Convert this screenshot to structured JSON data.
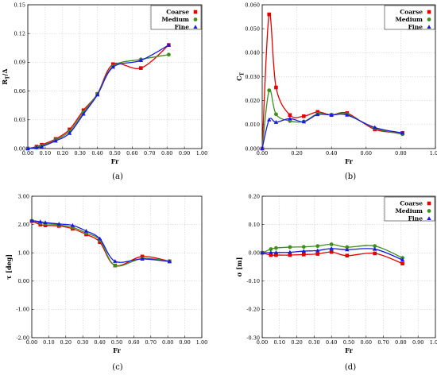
{
  "legend_labels": [
    "Coarse",
    "Medium",
    "Fine"
  ],
  "colors": {
    "Coarse": "#e60000",
    "Medium": "#3f8f1f",
    "Fine": "#1a1ae6"
  },
  "chart_data": [
    {
      "type": "line",
      "caption": "(a)",
      "xlabel": "Fr",
      "ylabel": "R_T / Δ",
      "ylabel_main": "R",
      "ylabel_sub": "T",
      "ylabel_rest": "/Δ",
      "xlim": [
        0,
        1
      ],
      "ylim": [
        0,
        0.15
      ],
      "xticks": [
        "0.00",
        "0.10",
        "0.20",
        "0.30",
        "0.40",
        "0.50",
        "0.60",
        "0.70",
        "0.80",
        "0.90",
        "1.00"
      ],
      "yticks": [
        "0.00",
        "0.03",
        "0.06",
        "0.09",
        "0.12",
        "0.15"
      ],
      "grid": true,
      "legend": "top-right",
      "series": [
        {
          "name": "Coarse",
          "marker": "square",
          "x": [
            0.0,
            0.05,
            0.08,
            0.16,
            0.24,
            0.32,
            0.4,
            0.49,
            0.65,
            0.81
          ],
          "y": [
            0.0,
            0.002,
            0.004,
            0.01,
            0.02,
            0.04,
            0.057,
            0.088,
            0.084,
            0.108
          ]
        },
        {
          "name": "Medium",
          "marker": "circle",
          "x": [
            0.0,
            0.05,
            0.08,
            0.16,
            0.24,
            0.32,
            0.4,
            0.49,
            0.65,
            0.81
          ],
          "y": [
            0.0,
            0.001,
            0.003,
            0.009,
            0.018,
            0.038,
            0.057,
            0.086,
            0.093,
            0.098
          ]
        },
        {
          "name": "Fine",
          "marker": "triangle",
          "x": [
            0.0,
            0.05,
            0.08,
            0.16,
            0.24,
            0.32,
            0.4,
            0.49,
            0.65,
            0.81
          ],
          "y": [
            0.0,
            0.001,
            0.002,
            0.008,
            0.016,
            0.036,
            0.056,
            0.085,
            0.092,
            0.108
          ]
        }
      ]
    },
    {
      "type": "line",
      "caption": "(b)",
      "xlabel": "Fr",
      "ylabel": "C_T",
      "ylabel_main": "C",
      "ylabel_sub": "T",
      "ylabel_rest": "",
      "xlim": [
        0,
        1
      ],
      "ylim": [
        0,
        0.06
      ],
      "xticks": [
        "0.00",
        "0.20",
        "0.40",
        "0.60",
        "0.80",
        "1.00"
      ],
      "yticks": [
        "0.000",
        "0.010",
        "0.020",
        "0.030",
        "0.040",
        "0.050",
        "0.060"
      ],
      "grid": true,
      "legend": "top-right",
      "series": [
        {
          "name": "Coarse",
          "marker": "square",
          "x": [
            0.0,
            0.04,
            0.08,
            0.16,
            0.24,
            0.32,
            0.4,
            0.49,
            0.65,
            0.81
          ],
          "y": [
            0.0,
            0.056,
            0.0255,
            0.014,
            0.0135,
            0.0153,
            0.014,
            0.0148,
            0.008,
            0.0065
          ]
        },
        {
          "name": "Medium",
          "marker": "circle",
          "x": [
            0.0,
            0.04,
            0.08,
            0.16,
            0.24,
            0.32,
            0.4,
            0.49,
            0.65,
            0.81
          ],
          "y": [
            0.0,
            0.0243,
            0.0143,
            0.0115,
            0.0113,
            0.0145,
            0.0141,
            0.0143,
            0.0085,
            0.006
          ]
        },
        {
          "name": "Fine",
          "marker": "triangle",
          "x": [
            0.0,
            0.04,
            0.08,
            0.16,
            0.24,
            0.32,
            0.4,
            0.49,
            0.65,
            0.81
          ],
          "y": [
            0.0,
            0.012,
            0.011,
            0.0125,
            0.0112,
            0.0142,
            0.014,
            0.014,
            0.0088,
            0.0065
          ]
        }
      ]
    },
    {
      "type": "line",
      "caption": "(c)",
      "xlabel": "Fr",
      "ylabel": "τ [deg]",
      "ylabel_main": "τ [deg]",
      "ylabel_sub": "",
      "ylabel_rest": "",
      "xlim": [
        0,
        1
      ],
      "ylim": [
        -2,
        3
      ],
      "xticks": [
        "0.00",
        "0.10",
        "0.20",
        "0.30",
        "0.40",
        "0.50",
        "0.60",
        "0.70",
        "0.80",
        "0.90",
        "1.00"
      ],
      "yticks": [
        "-2.00",
        "-1.00",
        "0.00",
        "1.00",
        "2.00",
        "3.00"
      ],
      "grid": true,
      "legend": "none",
      "series": [
        {
          "name": "Coarse",
          "marker": "square",
          "x": [
            0.0,
            0.05,
            0.08,
            0.16,
            0.24,
            0.32,
            0.4,
            0.49,
            0.65,
            0.81
          ],
          "y": [
            2.12,
            2.0,
            1.97,
            1.95,
            1.85,
            1.65,
            1.38,
            0.55,
            0.87,
            0.7
          ]
        },
        {
          "name": "Medium",
          "marker": "circle",
          "x": [
            0.0,
            0.05,
            0.08,
            0.16,
            0.24,
            0.32,
            0.4,
            0.49,
            0.65,
            0.81
          ],
          "y": [
            2.13,
            2.06,
            2.03,
            1.99,
            1.9,
            1.7,
            1.45,
            0.55,
            0.8,
            0.7
          ]
        },
        {
          "name": "Fine",
          "marker": "triangle",
          "x": [
            0.0,
            0.05,
            0.08,
            0.16,
            0.24,
            0.32,
            0.4,
            0.49,
            0.65,
            0.81
          ],
          "y": [
            2.14,
            2.1,
            2.07,
            2.02,
            1.97,
            1.77,
            1.5,
            0.7,
            0.78,
            0.69
          ]
        }
      ]
    },
    {
      "type": "line",
      "caption": "(d)",
      "xlabel": "Fr",
      "ylabel": "σ [m]",
      "ylabel_main": "σ [m]",
      "ylabel_sub": "",
      "ylabel_rest": "",
      "xlim": [
        0,
        1
      ],
      "ylim": [
        -0.3,
        0.2
      ],
      "xticks": [
        "0.00",
        "0.10",
        "0.20",
        "0.30",
        "0.40",
        "0.50",
        "0.60",
        "0.70",
        "0.80",
        "0.90",
        "1.00"
      ],
      "yticks": [
        "-0.30",
        "-0.20",
        "-0.10",
        "0.00",
        "0.10",
        "0.20"
      ],
      "grid": true,
      "legend": "top-right",
      "series": [
        {
          "name": "Coarse",
          "marker": "square",
          "x": [
            0.0,
            0.05,
            0.08,
            0.16,
            0.24,
            0.32,
            0.4,
            0.49,
            0.65,
            0.81
          ],
          "y": [
            0.0,
            -0.008,
            -0.008,
            -0.008,
            -0.006,
            -0.004,
            0.003,
            -0.01,
            -0.002,
            -0.038
          ]
        },
        {
          "name": "Medium",
          "marker": "circle",
          "x": [
            0.0,
            0.05,
            0.08,
            0.16,
            0.24,
            0.32,
            0.4,
            0.49,
            0.65,
            0.81
          ],
          "y": [
            0.0,
            0.013,
            0.017,
            0.02,
            0.021,
            0.024,
            0.03,
            0.02,
            0.024,
            -0.018
          ]
        },
        {
          "name": "Fine",
          "marker": "triangle",
          "x": [
            0.0,
            0.05,
            0.08,
            0.16,
            0.24,
            0.32,
            0.4,
            0.49,
            0.65,
            0.81
          ],
          "y": [
            0.0,
            0.001,
            0.001,
            0.002,
            0.006,
            0.008,
            0.015,
            0.011,
            0.013,
            -0.025
          ]
        }
      ]
    }
  ]
}
